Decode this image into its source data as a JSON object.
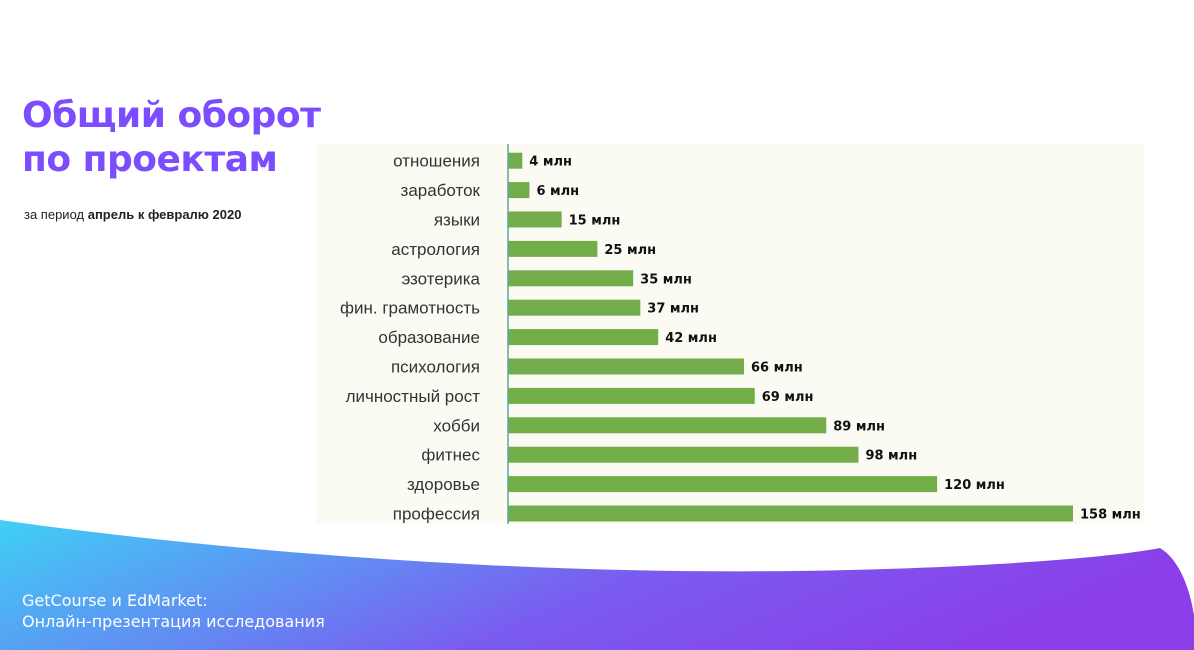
{
  "header": {
    "title_line1": "Общий оборот",
    "title_line2": "по проектам",
    "subtitle_prefix": "за период ",
    "subtitle_bold": "апрель к февралю 2020"
  },
  "colors": {
    "title": "#7b4dff",
    "bar": "#72ad4a",
    "axis": "#5aa8a0",
    "footer_gradient": [
      "#3fd0f5",
      "#7a5cf0",
      "#8a3fe8"
    ]
  },
  "chart_data": {
    "type": "bar",
    "orientation": "horizontal",
    "categories": [
      "отношения",
      "заработок",
      "языки",
      "астрология",
      "эзотерика",
      "фин. грамотность",
      "образование",
      "психология",
      "личностный рост",
      "хобби",
      "фитнес",
      "здоровье",
      "профессия"
    ],
    "values": [
      4,
      6,
      15,
      25,
      35,
      37,
      42,
      66,
      69,
      89,
      98,
      120,
      158
    ],
    "value_labels": [
      "4 млн",
      "6 млн",
      "15 млн",
      "25 млн",
      "35 млн",
      "37 млн",
      "42 млн",
      "66 млн",
      "69 млн",
      "89 млн",
      "98 млн",
      "120 млн",
      "158 млн"
    ],
    "xlim": [
      0,
      158
    ],
    "grid": false,
    "legend": "none"
  },
  "footer": {
    "line1": "GetCourse и EdMarket:",
    "line2": "Онлайн-презентация исследования"
  }
}
